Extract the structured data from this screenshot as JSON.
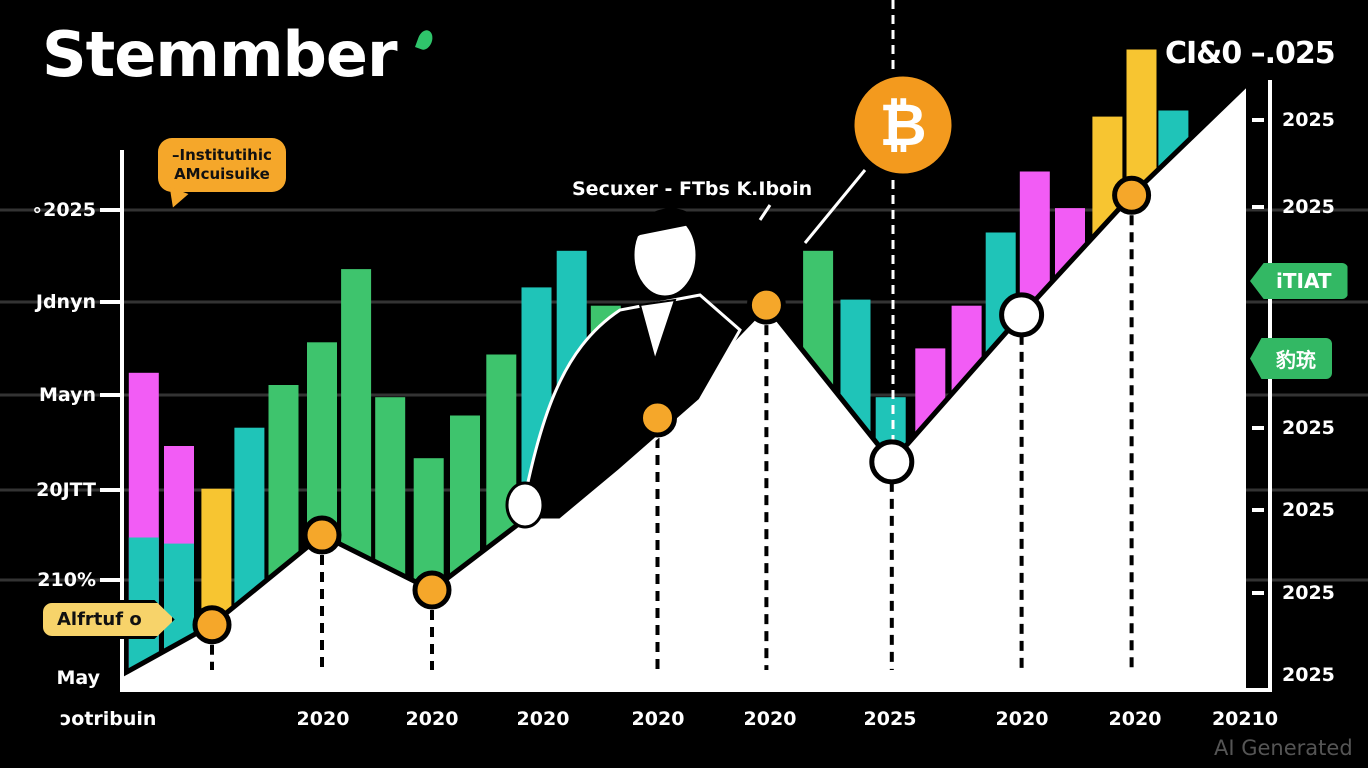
{
  "title": "Stemmber",
  "corner_label": "CI&0 –.025",
  "subtitle": "Secuxer - FTbs K.Iboin",
  "callout": {
    "line1": "–Institutihic",
    "line2": "AMcuisuike"
  },
  "tag_label": "Alfrtuf o",
  "pills": [
    "iTIAT",
    "豹珫"
  ],
  "watermark": "AI Generated",
  "colors": {
    "pink": "#f25cf5",
    "teal": "#1fc4b8",
    "green": "#3ec46d",
    "yellow": "#f7c531",
    "orange": "#f5a72a",
    "bitcoin": "#f39a1e"
  },
  "bitcoin_icon": "bitcoin-coin-icon",
  "chart_data": {
    "type": "bar",
    "title": "Stemmber",
    "xlabel": "ɔotribuin",
    "ylim": [
      0,
      100
    ],
    "xlim": [
      -0.82,
      9.6
    ],
    "left_tick_labels": [
      "∘2025",
      "Jdnyn",
      "Mayn",
      "20JTT",
      "210%",
      "May"
    ],
    "right_tick_labels": [
      "2025",
      "2025",
      "2025",
      "2025",
      "2025",
      "2025"
    ],
    "x_tick_labels": [
      "2020",
      "2020",
      "2020",
      "2020",
      "2020",
      "2025",
      "2020",
      "2020",
      "20210"
    ],
    "bars": [
      {
        "x": -0.62,
        "value": 52,
        "color": "pink"
      },
      {
        "x": -0.3,
        "value": 40,
        "color": "pink"
      },
      {
        "x": -0.62,
        "value": 25,
        "color": "teal"
      },
      {
        "x": -0.3,
        "value": 24,
        "color": "teal"
      },
      {
        "x": 0.04,
        "value": 33,
        "color": "yellow"
      },
      {
        "x": 0.34,
        "value": 43,
        "color": "teal"
      },
      {
        "x": 0.65,
        "value": 50,
        "color": "green"
      },
      {
        "x": 1.0,
        "value": 57,
        "color": "green"
      },
      {
        "x": 1.31,
        "value": 69,
        "color": "green"
      },
      {
        "x": 1.62,
        "value": 48,
        "color": "green"
      },
      {
        "x": 1.97,
        "value": 38,
        "color": "green"
      },
      {
        "x": 2.3,
        "value": 45,
        "color": "green"
      },
      {
        "x": 2.63,
        "value": 55,
        "color": "green"
      },
      {
        "x": 2.95,
        "value": 66,
        "color": "teal"
      },
      {
        "x": 3.27,
        "value": 72,
        "color": "teal"
      },
      {
        "x": 3.58,
        "value": 63,
        "color": "green"
      },
      {
        "x": 5.51,
        "value": 72,
        "color": "green"
      },
      {
        "x": 5.85,
        "value": 64,
        "color": "teal"
      },
      {
        "x": 6.17,
        "value": 48,
        "color": "teal"
      },
      {
        "x": 6.53,
        "value": 56,
        "color": "pink"
      },
      {
        "x": 6.86,
        "value": 63,
        "color": "pink"
      },
      {
        "x": 7.17,
        "value": 75,
        "color": "teal"
      },
      {
        "x": 7.48,
        "value": 85,
        "color": "pink"
      },
      {
        "x": 7.8,
        "value": 79,
        "color": "pink"
      },
      {
        "x": 8.14,
        "value": 94,
        "color": "yellow"
      },
      {
        "x": 8.45,
        "value": 105,
        "color": "yellow"
      },
      {
        "x": 8.74,
        "value": 95,
        "color": "teal"
      }
    ],
    "line": [
      {
        "x": -0.82,
        "y": 2.5
      },
      {
        "x": 0,
        "y": 10.7,
        "marker": "orange"
      },
      {
        "x": 1,
        "y": 25.4,
        "marker": "orange"
      },
      {
        "x": 2,
        "y": 16.4,
        "marker": "orange"
      },
      {
        "x": 4.05,
        "y": 44.6,
        "marker": "orange"
      },
      {
        "x": 5.04,
        "y": 63.1,
        "marker": "orange"
      },
      {
        "x": 6.18,
        "y": 37.4,
        "marker": "white"
      },
      {
        "x": 7.36,
        "y": 61.5,
        "marker": "white"
      },
      {
        "x": 8.36,
        "y": 81.1,
        "marker": "orange"
      },
      {
        "x": 9.4,
        "y": 99.2
      }
    ]
  }
}
